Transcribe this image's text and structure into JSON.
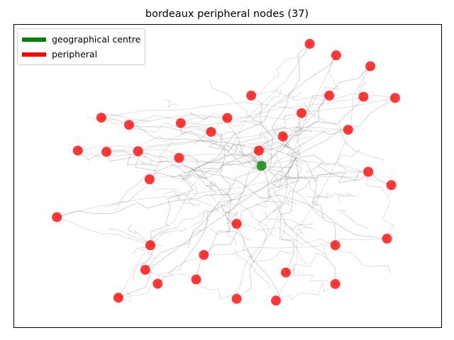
{
  "chart_data": {
    "type": "scatter",
    "title": "bordeaux peripheral nodes (37)",
    "xlabel": "",
    "ylabel": "",
    "grid": false,
    "axes_visible": false,
    "legend": {
      "placement": "top-left",
      "entries": [
        {
          "label": "geographical centre",
          "color": "#008000"
        },
        {
          "label": "peripheral",
          "color": "#ff0000"
        }
      ]
    },
    "series": [
      {
        "name": "geographical centre",
        "color": "#008000",
        "points": [
          [
            0.579,
            0.534
          ]
        ]
      },
      {
        "name": "peripheral",
        "color": "#ff0000",
        "points": [
          [
            0.692,
            0.937
          ],
          [
            0.754,
            0.899
          ],
          [
            0.834,
            0.863
          ],
          [
            0.555,
            0.766
          ],
          [
            0.738,
            0.766
          ],
          [
            0.818,
            0.762
          ],
          [
            0.892,
            0.758
          ],
          [
            0.673,
            0.708
          ],
          [
            0.204,
            0.693
          ],
          [
            0.269,
            0.669
          ],
          [
            0.39,
            0.675
          ],
          [
            0.499,
            0.692
          ],
          [
            0.461,
            0.646
          ],
          [
            0.782,
            0.653
          ],
          [
            0.629,
            0.631
          ],
          [
            0.149,
            0.584
          ],
          [
            0.216,
            0.58
          ],
          [
            0.29,
            0.582
          ],
          [
            0.573,
            0.584
          ],
          [
            0.386,
            0.56
          ],
          [
            0.829,
            0.514
          ],
          [
            0.317,
            0.489
          ],
          [
            0.883,
            0.47
          ],
          [
            0.1,
            0.364
          ],
          [
            0.521,
            0.342
          ],
          [
            0.873,
            0.293
          ],
          [
            0.319,
            0.271
          ],
          [
            0.752,
            0.271
          ],
          [
            0.444,
            0.239
          ],
          [
            0.307,
            0.19
          ],
          [
            0.636,
            0.181
          ],
          [
            0.336,
            0.144
          ],
          [
            0.426,
            0.158
          ],
          [
            0.752,
            0.143
          ],
          [
            0.244,
            0.098
          ],
          [
            0.521,
            0.094
          ],
          [
            0.613,
            0.088
          ]
        ]
      }
    ],
    "network_color": "#999999"
  }
}
